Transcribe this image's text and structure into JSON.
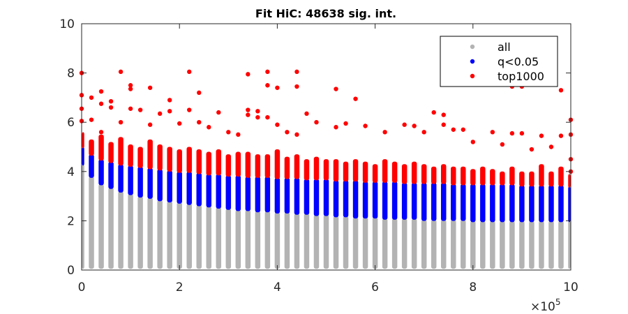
{
  "chart_data": {
    "type": "scatter",
    "title": "Fit HiC: 48638 sig. int.",
    "xlabel": "",
    "ylabel": "",
    "xlim": [
      0,
      1000000
    ],
    "ylim": [
      0,
      10
    ],
    "x_ticks": [
      "0",
      "2",
      "4",
      "6",
      "8",
      "10"
    ],
    "x_tick_values": [
      0,
      200000,
      400000,
      600000,
      800000,
      1000000
    ],
    "x_multiplier": {
      "base": "×10",
      "exponent": "5"
    },
    "y_ticks": [
      "0",
      "2",
      "4",
      "6",
      "8",
      "10"
    ],
    "y_tick_values": [
      0,
      2,
      4,
      6,
      8,
      10
    ],
    "bin_width": 20000,
    "bins_x": [
      0,
      20000,
      40000,
      60000,
      80000,
      100000,
      120000,
      140000,
      160000,
      180000,
      200000,
      220000,
      240000,
      260000,
      280000,
      300000,
      320000,
      340000,
      360000,
      380000,
      400000,
      420000,
      440000,
      460000,
      480000,
      500000,
      520000,
      540000,
      560000,
      580000,
      600000,
      620000,
      640000,
      660000,
      680000,
      700000,
      720000,
      740000,
      760000,
      780000,
      800000,
      820000,
      840000,
      860000,
      880000,
      900000,
      920000,
      940000,
      960000,
      980000,
      1000000
    ],
    "series": [
      {
        "name": "all",
        "color": "#b3b3b3",
        "y_min": [
          0.05,
          0.05,
          0.05,
          0.05,
          0.05,
          0.05,
          0.05,
          0.05,
          0.05,
          0.05,
          0.05,
          0.05,
          0.05,
          0.05,
          0.05,
          0.05,
          0.05,
          0.05,
          0.05,
          0.05,
          0.05,
          0.05,
          0.05,
          0.05,
          0.05,
          0.05,
          0.05,
          0.05,
          0.05,
          0.05,
          0.05,
          0.05,
          0.05,
          0.05,
          0.05,
          0.05,
          0.05,
          0.05,
          0.05,
          0.05,
          0.05,
          0.05,
          0.05,
          0.05,
          0.05,
          0.05,
          0.05,
          0.05,
          0.05,
          0.05,
          0.05
        ],
        "y_max": [
          4.3,
          3.8,
          3.5,
          3.35,
          3.2,
          3.1,
          3.0,
          2.95,
          2.85,
          2.8,
          2.75,
          2.7,
          2.65,
          2.6,
          2.55,
          2.5,
          2.45,
          2.45,
          2.4,
          2.4,
          2.35,
          2.35,
          2.3,
          2.3,
          2.25,
          2.25,
          2.2,
          2.2,
          2.15,
          2.15,
          2.15,
          2.1,
          2.1,
          2.1,
          2.1,
          2.05,
          2.05,
          2.05,
          2.05,
          2.05,
          2.0,
          2.0,
          2.0,
          2.0,
          2.0,
          2.0,
          2.0,
          2.0,
          2.0,
          2.0,
          2.0
        ]
      },
      {
        "name": "q<0.05",
        "color": "#0000ff",
        "y_max": [
          5.0,
          4.7,
          4.5,
          4.4,
          4.3,
          4.25,
          4.2,
          4.15,
          4.1,
          4.05,
          4.0,
          4.0,
          3.95,
          3.9,
          3.9,
          3.85,
          3.85,
          3.8,
          3.8,
          3.8,
          3.75,
          3.75,
          3.75,
          3.7,
          3.7,
          3.7,
          3.65,
          3.65,
          3.65,
          3.6,
          3.6,
          3.6,
          3.6,
          3.55,
          3.55,
          3.55,
          3.55,
          3.55,
          3.5,
          3.5,
          3.5,
          3.5,
          3.5,
          3.5,
          3.5,
          3.45,
          3.45,
          3.45,
          3.45,
          3.45,
          3.4
        ]
      },
      {
        "name": "top1000",
        "color": "#ff0000",
        "y_max": [
          5.6,
          5.3,
          5.5,
          5.2,
          5.4,
          5.1,
          5.0,
          5.3,
          5.1,
          5.0,
          4.9,
          5.0,
          4.9,
          4.8,
          4.9,
          4.7,
          4.8,
          4.8,
          4.7,
          4.7,
          4.9,
          4.6,
          4.7,
          4.5,
          4.6,
          4.5,
          4.5,
          4.4,
          4.5,
          4.4,
          4.3,
          4.5,
          4.4,
          4.3,
          4.4,
          4.3,
          4.2,
          4.3,
          4.2,
          4.2,
          4.1,
          4.2,
          4.1,
          4.0,
          4.2,
          4.0,
          4.0,
          4.3,
          4.0,
          4.2,
          3.9
        ],
        "outliers": [
          [
            0,
            8.0
          ],
          [
            0,
            7.1
          ],
          [
            0,
            6.55
          ],
          [
            0,
            6.05
          ],
          [
            20000,
            7.0
          ],
          [
            20000,
            6.1
          ],
          [
            40000,
            7.25
          ],
          [
            40000,
            6.75
          ],
          [
            40000,
            5.6
          ],
          [
            60000,
            6.85
          ],
          [
            60000,
            6.6
          ],
          [
            80000,
            8.05
          ],
          [
            80000,
            6.0
          ],
          [
            100000,
            7.5
          ],
          [
            100000,
            7.35
          ],
          [
            100000,
            6.55
          ],
          [
            120000,
            6.5
          ],
          [
            140000,
            7.4
          ],
          [
            140000,
            5.9
          ],
          [
            160000,
            6.35
          ],
          [
            180000,
            6.9
          ],
          [
            180000,
            6.45
          ],
          [
            200000,
            5.95
          ],
          [
            220000,
            8.05
          ],
          [
            220000,
            6.5
          ],
          [
            240000,
            7.2
          ],
          [
            240000,
            6.0
          ],
          [
            260000,
            5.8
          ],
          [
            280000,
            6.4
          ],
          [
            300000,
            5.6
          ],
          [
            320000,
            5.5
          ],
          [
            340000,
            7.95
          ],
          [
            340000,
            6.5
          ],
          [
            340000,
            6.3
          ],
          [
            360000,
            6.45
          ],
          [
            360000,
            6.2
          ],
          [
            380000,
            8.05
          ],
          [
            380000,
            7.5
          ],
          [
            380000,
            6.2
          ],
          [
            400000,
            7.4
          ],
          [
            400000,
            5.9
          ],
          [
            420000,
            5.6
          ],
          [
            440000,
            8.05
          ],
          [
            440000,
            7.45
          ],
          [
            440000,
            5.5
          ],
          [
            460000,
            6.35
          ],
          [
            480000,
            6.0
          ],
          [
            520000,
            7.35
          ],
          [
            520000,
            5.8
          ],
          [
            540000,
            5.95
          ],
          [
            560000,
            6.95
          ],
          [
            580000,
            5.85
          ],
          [
            620000,
            5.6
          ],
          [
            660000,
            5.9
          ],
          [
            680000,
            5.85
          ],
          [
            700000,
            5.6
          ],
          [
            720000,
            6.4
          ],
          [
            740000,
            6.3
          ],
          [
            740000,
            5.9
          ],
          [
            760000,
            5.7
          ],
          [
            780000,
            5.7
          ],
          [
            800000,
            5.2
          ],
          [
            840000,
            5.6
          ],
          [
            860000,
            5.1
          ],
          [
            880000,
            7.45
          ],
          [
            880000,
            5.55
          ],
          [
            900000,
            7.45
          ],
          [
            900000,
            5.55
          ],
          [
            920000,
            4.9
          ],
          [
            940000,
            5.45
          ],
          [
            960000,
            5.0
          ],
          [
            980000,
            7.3
          ],
          [
            980000,
            5.45
          ],
          [
            1000000,
            6.1
          ],
          [
            1000000,
            5.5
          ],
          [
            1000000,
            4.5
          ],
          [
            1000000,
            4.0
          ]
        ]
      }
    ],
    "legend": {
      "placement": "top-right",
      "entries": [
        "all",
        "q<0.05",
        "top1000"
      ]
    },
    "grid": false
  }
}
